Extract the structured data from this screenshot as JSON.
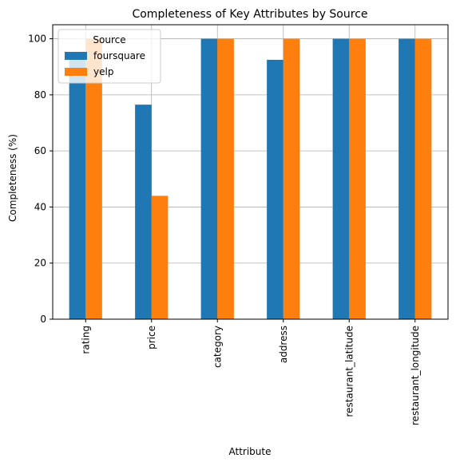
{
  "chart_data": {
    "type": "bar",
    "title": "Completeness of Key Attributes by Source",
    "xlabel": "Attribute",
    "ylabel": "Completeness (%)",
    "categories": [
      "rating",
      "price",
      "category",
      "address",
      "restaurant_latitude",
      "restaurant_longitude"
    ],
    "series": [
      {
        "name": "foursquare",
        "color": "#1f77b4",
        "values": [
          93,
          76.5,
          100,
          92.5,
          100,
          100
        ]
      },
      {
        "name": "yelp",
        "color": "#ff7f0e",
        "values": [
          100,
          44,
          100,
          100,
          100,
          100
        ]
      }
    ],
    "ylim": [
      0,
      105
    ],
    "yticks": [
      0,
      20,
      40,
      60,
      80,
      100
    ],
    "grid": true,
    "legend": {
      "title": "Source",
      "placement": "top-left"
    }
  }
}
